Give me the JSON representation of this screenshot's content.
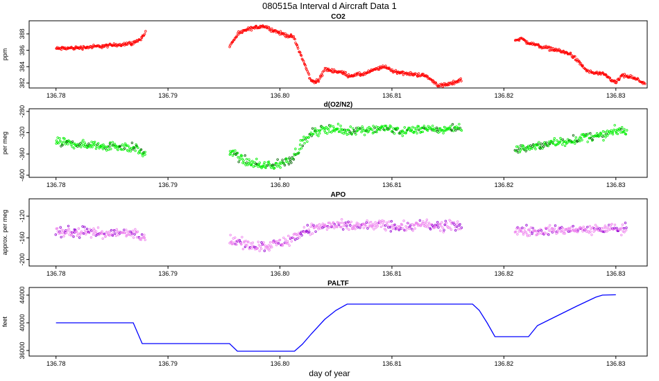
{
  "figure": {
    "title": "080515a   Interval d Aircraft Data 1",
    "xlabel": "day of year"
  },
  "chart_data": [
    {
      "type": "scatter",
      "title": "CO2",
      "ylabel": "ppm",
      "color": "#ff0000",
      "xlim": [
        136.7776,
        136.8328
      ],
      "ylim": [
        381.4,
        389.6
      ],
      "xticks": [
        136.78,
        136.79,
        136.8,
        136.81,
        136.82,
        136.83
      ],
      "xtick_labels": [
        "136.78",
        "136.79",
        "136.80",
        "136.81",
        "136.82",
        "136.83"
      ],
      "yticks": [
        382,
        384,
        386,
        388
      ],
      "ytick_labels": [
        "382",
        "384",
        "386",
        "388"
      ],
      "noise": 0.18,
      "step": 6e-05,
      "segments": [
        {
          "x": [
            136.78,
            136.782,
            136.785,
            136.787,
            136.7877,
            136.788
          ],
          "y": [
            386.2,
            386.3,
            386.6,
            386.9,
            387.6,
            388.2
          ]
        },
        {
          "x": [
            136.7955,
            136.7962,
            136.797,
            136.7985,
            136.8,
            136.8012,
            136.802,
            136.8028,
            136.8035,
            136.804,
            136.8055,
            136.8062,
            136.8075,
            136.8088,
            136.8095,
            136.81,
            136.8115,
            136.8125,
            136.813,
            136.8135,
            136.8142,
            136.815,
            136.8162
          ],
          "y": [
            386.5,
            387.9,
            388.5,
            389.0,
            388.1,
            387.6,
            385.0,
            382.2,
            382.3,
            383.7,
            383.3,
            382.9,
            383.1,
            383.8,
            384.0,
            383.5,
            383.1,
            383.0,
            382.9,
            382.4,
            381.7,
            381.8,
            382.4
          ]
        },
        {
          "x": [
            136.821,
            136.8215,
            136.822,
            136.8235,
            136.8248,
            136.826,
            136.8275,
            136.829,
            136.8305,
            136.831,
            136.8312,
            136.8326,
            136.83
          ],
          "y": [
            387.2,
            387.5,
            387.0,
            386.4,
            386.0,
            385.5,
            383.4,
            383.0,
            382.9,
            382.8,
            382.8,
            382.0,
            382.0
          ]
        }
      ]
    },
    {
      "type": "scatter",
      "title": "d(O2/N2)",
      "ylabel": "per meg",
      "color": "#00ee00",
      "color_alt": "#006400",
      "xlim": [
        136.7776,
        136.8328
      ],
      "ylim": [
        -404,
        -275
      ],
      "xticks": [
        136.78,
        136.79,
        136.8,
        136.81,
        136.82,
        136.83
      ],
      "xtick_labels": [
        "136.78",
        "136.79",
        "136.80",
        "136.81",
        "136.82",
        "136.83"
      ],
      "yticks": [
        -400,
        -360,
        -320,
        -280
      ],
      "ytick_labels": [
        "-400",
        "-360",
        "-320",
        "-280"
      ],
      "noise": 7,
      "step": 6e-05,
      "segments": [
        {
          "x": [
            136.78,
            136.782,
            136.785,
            136.787,
            136.788
          ],
          "y": [
            -338,
            -342,
            -345,
            -348,
            -362
          ]
        },
        {
          "x": [
            136.7955,
            136.797,
            136.7985,
            136.8,
            136.801,
            136.802,
            136.803,
            136.8045,
            136.806,
            136.808,
            136.8095,
            136.811,
            136.8125,
            136.814,
            136.8152,
            136.8162
          ],
          "y": [
            -355,
            -375,
            -382,
            -380,
            -370,
            -340,
            -320,
            -310,
            -318,
            -313,
            -312,
            -318,
            -312,
            -315,
            -312,
            -310
          ]
        },
        {
          "x": [
            136.821,
            136.823,
            136.825,
            136.827,
            136.829,
            136.831,
            136.83
          ],
          "y": [
            -352,
            -345,
            -338,
            -330,
            -325,
            -316,
            -316
          ]
        }
      ]
    },
    {
      "type": "scatter",
      "title": "APO",
      "ylabel": "approx. per meg",
      "color": "#ee82ee",
      "color_alt": "#9400d3",
      "xlim": [
        136.7776,
        136.8328
      ],
      "ylim": [
        -212,
        -88
      ],
      "xticks": [
        136.78,
        136.79,
        136.8,
        136.81,
        136.82,
        136.83
      ],
      "xtick_labels": [
        "136.78",
        "136.79",
        "136.80",
        "136.81",
        "136.82",
        "136.83"
      ],
      "yticks": [
        -200,
        -160,
        -120
      ],
      "ytick_labels": [
        "-200",
        "-160",
        "-120"
      ],
      "noise": 8,
      "step": 6e-05,
      "segments": [
        {
          "x": [
            136.78,
            136.782,
            136.785,
            136.787,
            136.788
          ],
          "y": [
            -148,
            -150,
            -152,
            -150,
            -158
          ]
        },
        {
          "x": [
            136.7955,
            136.797,
            136.7985,
            136.8,
            136.801,
            136.802,
            136.803,
            136.8045,
            136.806,
            136.808,
            136.8095,
            136.811,
            136.8125,
            136.814,
            136.8152,
            136.8162
          ],
          "y": [
            -165,
            -172,
            -175,
            -170,
            -162,
            -150,
            -142,
            -137,
            -140,
            -137,
            -136,
            -140,
            -136,
            -139,
            -138,
            -137
          ]
        },
        {
          "x": [
            136.821,
            136.823,
            136.825,
            136.827,
            136.829,
            136.831,
            136.83
          ],
          "y": [
            -147,
            -148,
            -146,
            -145,
            -144,
            -143,
            -143
          ]
        }
      ]
    },
    {
      "type": "line",
      "title": "PALTF",
      "ylabel": "feet",
      "color": "#0000ff",
      "xlim": [
        136.7776,
        136.8328
      ],
      "ylim": [
        35200,
        45100
      ],
      "xticks": [
        136.78,
        136.79,
        136.8,
        136.81,
        136.82,
        136.83
      ],
      "xtick_labels": [
        "136.78",
        "136.79",
        "136.80",
        "136.81",
        "136.82",
        "136.83"
      ],
      "yticks": [
        36000,
        40000,
        44000
      ],
      "ytick_labels": [
        "36000",
        "40000",
        "44000"
      ],
      "x": [
        136.78,
        136.7869,
        136.7877,
        136.7955,
        136.7962,
        136.8013,
        136.802,
        136.8028,
        136.804,
        136.805,
        136.806,
        136.8172,
        136.8178,
        136.8185,
        136.8192,
        136.8222,
        136.823,
        136.8245,
        136.8265,
        136.8282,
        136.8288,
        136.83
      ],
      "y": [
        40000,
        40000,
        37000,
        37000,
        35900,
        35900,
        36900,
        38400,
        40500,
        41800,
        42700,
        42700,
        41800,
        40000,
        38000,
        38000,
        39600,
        40800,
        42400,
        43700,
        44000,
        44050
      ]
    }
  ]
}
